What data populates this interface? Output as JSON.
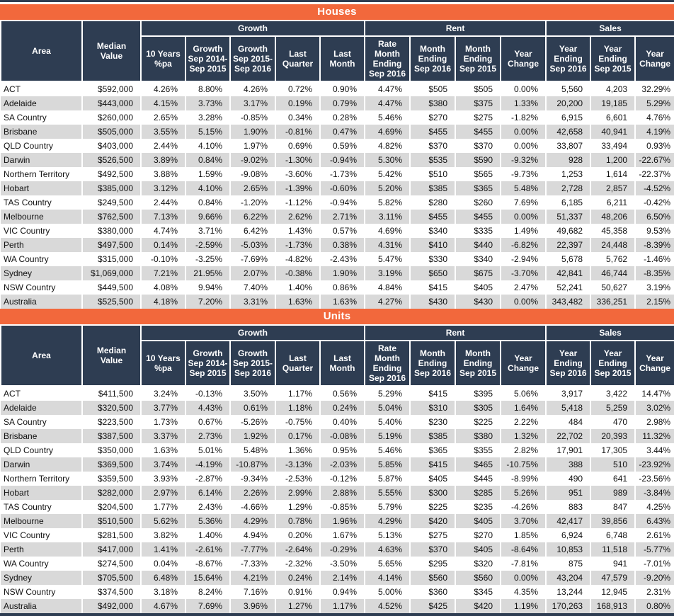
{
  "colors": {
    "accent_orange": "#f2683c",
    "header_navy": "#2e3d52",
    "row_alt_gray": "#d9d9d9",
    "row_white": "#ffffff",
    "text_black": "#111111",
    "header_text_white": "#ffffff"
  },
  "tables": [
    {
      "title": "Houses",
      "column_groups": [
        {
          "label": "Growth",
          "span": 5
        },
        {
          "label": "Rent",
          "span": 4
        },
        {
          "label": "Sales",
          "span": 3
        }
      ],
      "columns": [
        "Area",
        "Median\nValue",
        "10 Years\n%pa",
        "Growth\nSep 2014-\nSep 2015",
        "Growth\nSep 2015-\nSep 2016",
        "Last\nQuarter",
        "Last\nMonth",
        "Rate\nMonth\nEnding\nSep 2016",
        "Month\nEnding\nSep 2016",
        "Month\nEnding\nSep 2015",
        "Year\nChange",
        "Year\nEnding\nSep 2016",
        "Year\nEnding\nSep 2015",
        "Year\nChange"
      ],
      "rows": [
        [
          "ACT",
          "$592,000",
          "4.26%",
          "8.80%",
          "4.26%",
          "0.72%",
          "0.90%",
          "4.47%",
          "$505",
          "$505",
          "0.00%",
          "5,560",
          "4,203",
          "32.29%"
        ],
        [
          "Adelaide",
          "$443,000",
          "4.15%",
          "3.73%",
          "3.17%",
          "0.19%",
          "0.79%",
          "4.47%",
          "$380",
          "$375",
          "1.33%",
          "20,200",
          "19,185",
          "5.29%"
        ],
        [
          "SA Country",
          "$260,000",
          "2.65%",
          "3.28%",
          "-0.85%",
          "0.34%",
          "0.28%",
          "5.46%",
          "$270",
          "$275",
          "-1.82%",
          "6,915",
          "6,601",
          "4.76%"
        ],
        [
          "Brisbane",
          "$505,000",
          "3.55%",
          "5.15%",
          "1.90%",
          "-0.81%",
          "0.47%",
          "4.69%",
          "$455",
          "$455",
          "0.00%",
          "42,658",
          "40,941",
          "4.19%"
        ],
        [
          "QLD Country",
          "$403,000",
          "2.44%",
          "4.10%",
          "1.97%",
          "0.69%",
          "0.59%",
          "4.82%",
          "$370",
          "$370",
          "0.00%",
          "33,807",
          "33,494",
          "0.93%"
        ],
        [
          "Darwin",
          "$526,500",
          "3.89%",
          "0.84%",
          "-9.02%",
          "-1.30%",
          "-0.94%",
          "5.30%",
          "$535",
          "$590",
          "-9.32%",
          "928",
          "1,200",
          "-22.67%"
        ],
        [
          "Northern Territory",
          "$492,500",
          "3.88%",
          "1.59%",
          "-9.08%",
          "-3.60%",
          "-1.73%",
          "5.42%",
          "$510",
          "$565",
          "-9.73%",
          "1,253",
          "1,614",
          "-22.37%"
        ],
        [
          "Hobart",
          "$385,000",
          "3.12%",
          "4.10%",
          "2.65%",
          "-1.39%",
          "-0.60%",
          "5.20%",
          "$385",
          "$365",
          "5.48%",
          "2,728",
          "2,857",
          "-4.52%"
        ],
        [
          "TAS Country",
          "$249,500",
          "2.44%",
          "0.84%",
          "-1.20%",
          "-1.12%",
          "-0.94%",
          "5.82%",
          "$280",
          "$260",
          "7.69%",
          "6,185",
          "6,211",
          "-0.42%"
        ],
        [
          "Melbourne",
          "$762,500",
          "7.13%",
          "9.66%",
          "6.22%",
          "2.62%",
          "2.71%",
          "3.11%",
          "$455",
          "$455",
          "0.00%",
          "51,337",
          "48,206",
          "6.50%"
        ],
        [
          "VIC Country",
          "$380,000",
          "4.74%",
          "3.71%",
          "6.42%",
          "1.43%",
          "0.57%",
          "4.69%",
          "$340",
          "$335",
          "1.49%",
          "49,682",
          "45,358",
          "9.53%"
        ],
        [
          "Perth",
          "$497,500",
          "0.14%",
          "-2.59%",
          "-5.03%",
          "-1.73%",
          "0.38%",
          "4.31%",
          "$410",
          "$440",
          "-6.82%",
          "22,397",
          "24,448",
          "-8.39%"
        ],
        [
          "WA Country",
          "$315,000",
          "-0.10%",
          "-3.25%",
          "-7.69%",
          "-4.82%",
          "-2.43%",
          "5.47%",
          "$330",
          "$340",
          "-2.94%",
          "5,678",
          "5,762",
          "-1.46%"
        ],
        [
          "Sydney",
          "$1,069,000",
          "7.21%",
          "21.95%",
          "2.07%",
          "-0.38%",
          "1.90%",
          "3.19%",
          "$650",
          "$675",
          "-3.70%",
          "42,841",
          "46,744",
          "-8.35%"
        ],
        [
          "NSW Country",
          "$449,500",
          "4.08%",
          "9.94%",
          "7.40%",
          "1.40%",
          "0.86%",
          "4.84%",
          "$415",
          "$405",
          "2.47%",
          "52,241",
          "50,627",
          "3.19%"
        ],
        [
          "Australia",
          "$525,500",
          "4.18%",
          "7.20%",
          "3.31%",
          "1.63%",
          "1.63%",
          "4.27%",
          "$430",
          "$430",
          "0.00%",
          "343,482",
          "336,251",
          "2.15%"
        ]
      ]
    },
    {
      "title": "Units",
      "column_groups": [
        {
          "label": "Growth",
          "span": 5
        },
        {
          "label": "Rent",
          "span": 4
        },
        {
          "label": "Sales",
          "span": 3
        }
      ],
      "columns": [
        "Area",
        "Median\nValue",
        "10 Years\n%pa",
        "Growth\nSep 2014-\nSep 2015",
        "Growth\nSep 2015-\nSep 2016",
        "Last\nQuarter",
        "Last\nMonth",
        "Rate\nMonth\nEnding\nSep 2016",
        "Month\nEnding\nSep 2016",
        "Month\nEnding\nSep 2015",
        "Year\nChange",
        "Year\nEnding\nSep 2016",
        "Year\nEnding\nSep 2015",
        "Year\nChange"
      ],
      "rows": [
        [
          "ACT",
          "$411,500",
          "3.24%",
          "-0.13%",
          "3.50%",
          "1.17%",
          "0.56%",
          "5.29%",
          "$415",
          "$395",
          "5.06%",
          "3,917",
          "3,422",
          "14.47%"
        ],
        [
          "Adelaide",
          "$320,500",
          "3.77%",
          "4.43%",
          "0.61%",
          "1.18%",
          "0.24%",
          "5.04%",
          "$310",
          "$305",
          "1.64%",
          "5,418",
          "5,259",
          "3.02%"
        ],
        [
          "SA Country",
          "$223,500",
          "1.73%",
          "0.67%",
          "-5.26%",
          "-0.75%",
          "0.40%",
          "5.40%",
          "$230",
          "$225",
          "2.22%",
          "484",
          "470",
          "2.98%"
        ],
        [
          "Brisbane",
          "$387,500",
          "3.37%",
          "2.73%",
          "1.92%",
          "0.17%",
          "-0.08%",
          "5.19%",
          "$385",
          "$380",
          "1.32%",
          "22,702",
          "20,393",
          "11.32%"
        ],
        [
          "QLD Country",
          "$350,000",
          "1.63%",
          "5.01%",
          "5.48%",
          "1.36%",
          "0.95%",
          "5.46%",
          "$365",
          "$355",
          "2.82%",
          "17,901",
          "17,305",
          "3.44%"
        ],
        [
          "Darwin",
          "$369,500",
          "3.74%",
          "-4.19%",
          "-10.87%",
          "-3.13%",
          "-2.03%",
          "5.85%",
          "$415",
          "$465",
          "-10.75%",
          "388",
          "510",
          "-23.92%"
        ],
        [
          "Northern Territory",
          "$359,500",
          "3.93%",
          "-2.87%",
          "-9.34%",
          "-2.53%",
          "-0.12%",
          "5.87%",
          "$405",
          "$445",
          "-8.99%",
          "490",
          "641",
          "-23.56%"
        ],
        [
          "Hobart",
          "$282,000",
          "2.97%",
          "6.14%",
          "2.26%",
          "2.99%",
          "2.88%",
          "5.55%",
          "$300",
          "$285",
          "5.26%",
          "951",
          "989",
          "-3.84%"
        ],
        [
          "TAS Country",
          "$204,500",
          "1.77%",
          "2.43%",
          "-4.66%",
          "1.29%",
          "-0.85%",
          "5.79%",
          "$225",
          "$235",
          "-4.26%",
          "883",
          "847",
          "4.25%"
        ],
        [
          "Melbourne",
          "$510,500",
          "5.62%",
          "5.36%",
          "4.29%",
          "0.78%",
          "1.96%",
          "4.29%",
          "$420",
          "$405",
          "3.70%",
          "42,417",
          "39,856",
          "6.43%"
        ],
        [
          "VIC Country",
          "$281,500",
          "3.82%",
          "1.40%",
          "4.94%",
          "0.20%",
          "1.67%",
          "5.13%",
          "$275",
          "$270",
          "1.85%",
          "6,924",
          "6,748",
          "2.61%"
        ],
        [
          "Perth",
          "$417,000",
          "1.41%",
          "-2.61%",
          "-7.77%",
          "-2.64%",
          "-0.29%",
          "4.63%",
          "$370",
          "$405",
          "-8.64%",
          "10,853",
          "11,518",
          "-5.77%"
        ],
        [
          "WA Country",
          "$274,500",
          "0.04%",
          "-8.67%",
          "-7.33%",
          "-2.32%",
          "-3.50%",
          "5.65%",
          "$295",
          "$320",
          "-7.81%",
          "875",
          "941",
          "-7.01%"
        ],
        [
          "Sydney",
          "$705,500",
          "6.48%",
          "15.64%",
          "4.21%",
          "0.24%",
          "2.14%",
          "4.14%",
          "$560",
          "$560",
          "0.00%",
          "43,204",
          "47,579",
          "-9.20%"
        ],
        [
          "NSW Country",
          "$374,500",
          "3.18%",
          "8.24%",
          "7.16%",
          "0.91%",
          "0.94%",
          "5.00%",
          "$360",
          "$345",
          "4.35%",
          "13,244",
          "12,945",
          "2.31%"
        ],
        [
          "Australia",
          "$492,000",
          "4.67%",
          "7.69%",
          "3.96%",
          "1.27%",
          "1.17%",
          "4.52%",
          "$425",
          "$420",
          "1.19%",
          "170,263",
          "168,913",
          "0.80%"
        ]
      ]
    }
  ]
}
